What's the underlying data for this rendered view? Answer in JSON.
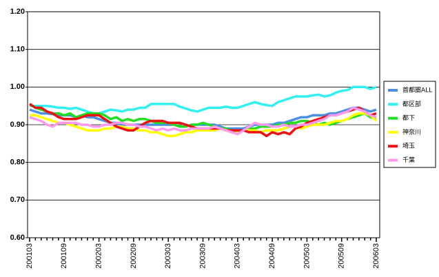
{
  "chart_data": {
    "type": "line",
    "categories": [
      "200103",
      null,
      null,
      null,
      null,
      null,
      "200109",
      null,
      null,
      null,
      null,
      null,
      "200203",
      null,
      null,
      null,
      null,
      null,
      "200209",
      null,
      null,
      null,
      null,
      null,
      "200303",
      null,
      null,
      null,
      null,
      null,
      "200309",
      null,
      null,
      null,
      null,
      null,
      "200403",
      null,
      null,
      null,
      null,
      null,
      "200409",
      null,
      null,
      null,
      null,
      null,
      "200503",
      null,
      null,
      null,
      null,
      null,
      "200509",
      null,
      null,
      null,
      null,
      null,
      "200603"
    ],
    "series": [
      {
        "name": "首都圏ALL",
        "color": "#4a90e2",
        "values": [
          0.94,
          0.935,
          0.93,
          0.93,
          0.928,
          0.925,
          0.925,
          0.925,
          0.92,
          0.925,
          0.92,
          0.92,
          0.915,
          0.91,
          0.905,
          0.905,
          0.9,
          0.9,
          0.9,
          0.9,
          0.9,
          0.9,
          0.9,
          0.9,
          0.9,
          0.9,
          0.895,
          0.895,
          0.9,
          0.9,
          0.9,
          0.9,
          0.9,
          0.895,
          0.89,
          0.89,
          0.89,
          0.89,
          0.895,
          0.9,
          0.9,
          0.9,
          0.9,
          0.905,
          0.905,
          0.91,
          0.915,
          0.92,
          0.92,
          0.925,
          0.925,
          0.925,
          0.93,
          0.93,
          0.935,
          0.94,
          0.945,
          0.945,
          0.94,
          0.935,
          0.94
        ]
      },
      {
        "name": "都区部",
        "color": "#33f0f0",
        "values": [
          0.95,
          0.95,
          0.95,
          0.95,
          0.948,
          0.945,
          0.945,
          0.942,
          0.945,
          0.94,
          0.935,
          0.93,
          0.93,
          0.935,
          0.94,
          0.938,
          0.935,
          0.94,
          0.94,
          0.945,
          0.945,
          0.955,
          0.955,
          0.955,
          0.955,
          0.955,
          0.948,
          0.943,
          0.938,
          0.935,
          0.94,
          0.945,
          0.945,
          0.945,
          0.948,
          0.945,
          0.945,
          0.95,
          0.955,
          0.96,
          0.955,
          0.952,
          0.95,
          0.96,
          0.965,
          0.97,
          0.975,
          0.975,
          0.975,
          0.978,
          0.98,
          0.975,
          0.978,
          0.985,
          0.99,
          0.992,
          1.0,
          1.0,
          1.0,
          0.995,
          1.0
        ]
      },
      {
        "name": "都下",
        "color": "#22dd22",
        "values": [
          0.955,
          0.945,
          0.94,
          0.935,
          0.93,
          0.93,
          0.925,
          0.93,
          0.92,
          0.925,
          0.93,
          0.93,
          0.93,
          0.925,
          0.915,
          0.92,
          0.91,
          0.915,
          0.91,
          0.915,
          0.915,
          0.91,
          0.905,
          0.905,
          0.905,
          0.9,
          0.895,
          0.895,
          0.9,
          0.9,
          0.905,
          0.9,
          0.895,
          0.89,
          0.89,
          0.885,
          0.88,
          0.885,
          0.89,
          0.89,
          0.895,
          0.895,
          0.895,
          0.9,
          0.9,
          0.905,
          0.905,
          0.91,
          0.91,
          0.905,
          0.9,
          0.905,
          0.9,
          0.905,
          0.91,
          0.915,
          0.92,
          0.925,
          0.93,
          0.92,
          0.915
        ]
      },
      {
        "name": "神奈川",
        "color": "#ffff00",
        "values": [
          0.925,
          0.925,
          0.92,
          0.915,
          0.91,
          0.905,
          0.905,
          0.9,
          0.895,
          0.89,
          0.885,
          0.885,
          0.885,
          0.89,
          0.89,
          0.895,
          0.895,
          0.89,
          0.89,
          0.885,
          0.885,
          0.88,
          0.88,
          0.875,
          0.87,
          0.87,
          0.875,
          0.88,
          0.88,
          0.885,
          0.885,
          0.885,
          0.885,
          0.89,
          0.885,
          0.88,
          0.88,
          0.885,
          0.885,
          0.885,
          0.88,
          0.885,
          0.885,
          0.885,
          0.89,
          0.895,
          0.895,
          0.89,
          0.895,
          0.9,
          0.9,
          0.9,
          0.905,
          0.91,
          0.91,
          0.915,
          0.925,
          0.93,
          0.93,
          0.925,
          0.91
        ]
      },
      {
        "name": "埼玉",
        "color": "#ee1111",
        "values": [
          0.955,
          0.945,
          0.945,
          0.935,
          0.93,
          0.92,
          0.915,
          0.915,
          0.915,
          0.92,
          0.925,
          0.925,
          0.925,
          0.915,
          0.905,
          0.895,
          0.89,
          0.885,
          0.885,
          0.895,
          0.905,
          0.91,
          0.91,
          0.91,
          0.905,
          0.905,
          0.905,
          0.9,
          0.895,
          0.89,
          0.89,
          0.89,
          0.89,
          0.89,
          0.885,
          0.885,
          0.885,
          0.885,
          0.88,
          0.88,
          0.88,
          0.87,
          0.88,
          0.875,
          0.88,
          0.875,
          0.89,
          0.895,
          0.905,
          0.91,
          0.915,
          0.92,
          0.925,
          0.925,
          0.93,
          0.935,
          0.94,
          0.945,
          0.935,
          0.925,
          0.93
        ]
      },
      {
        "name": "千葉",
        "color": "#ff99ee",
        "values": [
          0.92,
          0.915,
          0.91,
          0.9,
          0.895,
          0.905,
          0.905,
          0.905,
          0.905,
          0.9,
          0.9,
          0.895,
          0.895,
          0.9,
          0.9,
          0.905,
          0.905,
          0.9,
          0.9,
          0.895,
          0.895,
          0.89,
          0.885,
          0.89,
          0.885,
          0.89,
          0.885,
          0.885,
          0.89,
          0.89,
          0.89,
          0.89,
          0.895,
          0.89,
          0.885,
          0.88,
          0.875,
          0.885,
          0.895,
          0.905,
          0.9,
          0.9,
          0.895,
          0.895,
          0.9,
          0.895,
          0.895,
          0.9,
          0.9,
          0.905,
          0.91,
          0.915,
          0.925,
          0.925,
          0.93,
          0.935,
          0.945,
          0.94,
          0.935,
          0.925,
          0.92
        ]
      }
    ],
    "ylim": [
      0.6,
      1.2
    ],
    "yticks": [
      {
        "value": 0.6,
        "label": "0.60"
      },
      {
        "value": 0.7,
        "label": "0.70"
      },
      {
        "value": 0.8,
        "label": "0.80"
      },
      {
        "value": 0.9,
        "label": "0.90"
      },
      {
        "value": 1.0,
        "label": "1.00"
      },
      {
        "value": 1.1,
        "label": "1.10"
      },
      {
        "value": 1.2,
        "label": "1.20"
      }
    ],
    "grid": true,
    "legend": "right"
  }
}
